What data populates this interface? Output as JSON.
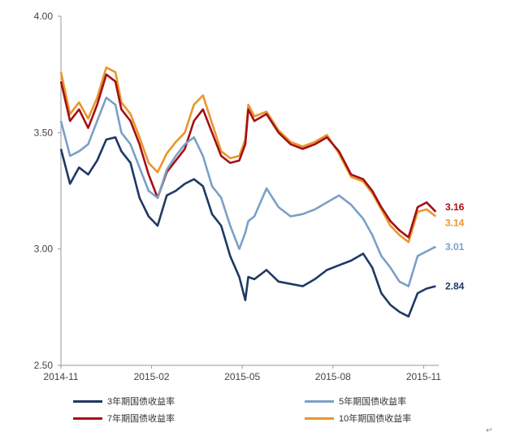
{
  "chart_data": {
    "type": "line",
    "title": "",
    "xlabel": "",
    "ylabel": "",
    "ylim": [
      2.5,
      4.0
    ],
    "y_ticks": [
      "4.00",
      "3.50",
      "3.00",
      "2.50"
    ],
    "x_ticks": [
      "2014-11",
      "2015-02",
      "2015-05",
      "2015-08",
      "2015-11"
    ],
    "x_tick_positions": [
      0,
      3,
      6,
      9,
      12
    ],
    "x_range": [
      0,
      12.5
    ],
    "grid": false,
    "legend": "bottom",
    "series": [
      {
        "name": "3年期国债收益率",
        "color": "#1f3864",
        "end_label": "2.84",
        "x": [
          0,
          0.3,
          0.6,
          0.9,
          1.2,
          1.5,
          1.8,
          2.0,
          2.3,
          2.6,
          2.9,
          3.2,
          3.5,
          3.8,
          4.1,
          4.4,
          4.7,
          5.0,
          5.3,
          5.6,
          5.9,
          6.1,
          6.2,
          6.4,
          6.8,
          7.2,
          7.6,
          8.0,
          8.4,
          8.8,
          9.2,
          9.6,
          10.0,
          10.3,
          10.6,
          10.9,
          11.2,
          11.5,
          11.8,
          12.1,
          12.4
        ],
        "values": [
          3.43,
          3.28,
          3.35,
          3.32,
          3.38,
          3.47,
          3.48,
          3.42,
          3.37,
          3.22,
          3.14,
          3.1,
          3.23,
          3.25,
          3.28,
          3.3,
          3.27,
          3.15,
          3.1,
          2.97,
          2.88,
          2.78,
          2.88,
          2.87,
          2.91,
          2.86,
          2.85,
          2.84,
          2.87,
          2.91,
          2.93,
          2.95,
          2.98,
          2.92,
          2.81,
          2.76,
          2.73,
          2.71,
          2.81,
          2.83,
          2.84
        ]
      },
      {
        "name": "5年期国债收益率",
        "color": "#7ba0c8",
        "end_label": "3.01",
        "x": [
          0,
          0.3,
          0.6,
          0.9,
          1.2,
          1.5,
          1.8,
          2.0,
          2.3,
          2.6,
          2.9,
          3.2,
          3.5,
          3.8,
          4.1,
          4.4,
          4.7,
          5.0,
          5.3,
          5.6,
          5.9,
          6.1,
          6.2,
          6.4,
          6.8,
          7.2,
          7.6,
          8.0,
          8.4,
          8.8,
          9.2,
          9.6,
          10.0,
          10.3,
          10.6,
          10.9,
          11.2,
          11.5,
          11.8,
          12.1,
          12.4
        ],
        "values": [
          3.55,
          3.4,
          3.42,
          3.45,
          3.55,
          3.65,
          3.62,
          3.5,
          3.45,
          3.35,
          3.25,
          3.22,
          3.34,
          3.4,
          3.45,
          3.48,
          3.4,
          3.27,
          3.22,
          3.1,
          3.0,
          3.07,
          3.12,
          3.14,
          3.26,
          3.18,
          3.14,
          3.15,
          3.17,
          3.2,
          3.23,
          3.19,
          3.13,
          3.06,
          2.97,
          2.92,
          2.86,
          2.84,
          2.97,
          2.99,
          3.01
        ]
      },
      {
        "name": "7年期国债收益率",
        "color": "#a50f15",
        "end_label": "3.16",
        "x": [
          0,
          0.3,
          0.6,
          0.9,
          1.2,
          1.5,
          1.8,
          2.0,
          2.3,
          2.6,
          2.9,
          3.2,
          3.5,
          3.8,
          4.1,
          4.4,
          4.7,
          5.0,
          5.3,
          5.6,
          5.9,
          6.1,
          6.2,
          6.4,
          6.8,
          7.2,
          7.6,
          8.0,
          8.4,
          8.8,
          9.2,
          9.6,
          10.0,
          10.3,
          10.6,
          10.9,
          11.2,
          11.5,
          11.8,
          12.1,
          12.4
        ],
        "values": [
          3.72,
          3.55,
          3.6,
          3.52,
          3.62,
          3.75,
          3.72,
          3.6,
          3.55,
          3.45,
          3.32,
          3.22,
          3.33,
          3.38,
          3.43,
          3.55,
          3.6,
          3.5,
          3.4,
          3.37,
          3.38,
          3.45,
          3.6,
          3.55,
          3.58,
          3.5,
          3.45,
          3.43,
          3.45,
          3.48,
          3.42,
          3.32,
          3.3,
          3.25,
          3.18,
          3.12,
          3.08,
          3.05,
          3.18,
          3.2,
          3.16
        ]
      },
      {
        "name": "10年期国债收益率",
        "color": "#e8962b",
        "end_label": "3.14",
        "x": [
          0,
          0.3,
          0.6,
          0.9,
          1.2,
          1.5,
          1.8,
          2.0,
          2.3,
          2.6,
          2.9,
          3.2,
          3.5,
          3.8,
          4.1,
          4.4,
          4.7,
          5.0,
          5.3,
          5.6,
          5.9,
          6.1,
          6.2,
          6.4,
          6.8,
          7.2,
          7.6,
          8.0,
          8.4,
          8.8,
          9.2,
          9.6,
          10.0,
          10.3,
          10.6,
          10.9,
          11.2,
          11.5,
          11.8,
          12.1,
          12.4
        ],
        "values": [
          3.76,
          3.58,
          3.63,
          3.56,
          3.65,
          3.78,
          3.76,
          3.63,
          3.58,
          3.48,
          3.37,
          3.33,
          3.41,
          3.46,
          3.5,
          3.62,
          3.66,
          3.54,
          3.42,
          3.39,
          3.4,
          3.47,
          3.62,
          3.57,
          3.59,
          3.51,
          3.46,
          3.44,
          3.46,
          3.49,
          3.41,
          3.31,
          3.29,
          3.24,
          3.17,
          3.1,
          3.06,
          3.03,
          3.16,
          3.17,
          3.14
        ]
      }
    ]
  },
  "footer_mark": "↵"
}
